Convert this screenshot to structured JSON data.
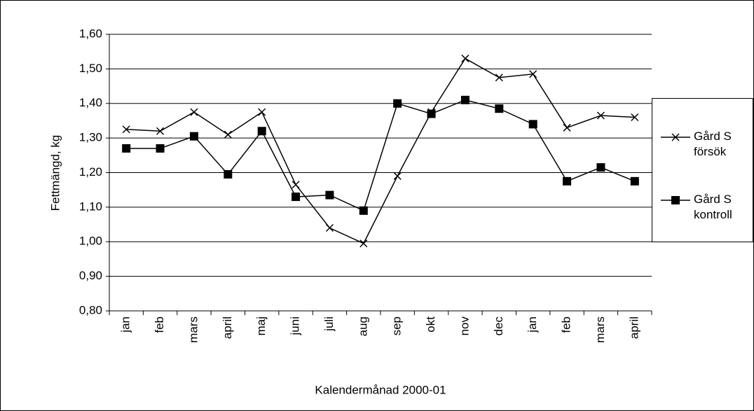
{
  "chart_data": {
    "type": "line",
    "x_label": "Kalendermånad 2000-01",
    "y_label": "Fettmängd, kg",
    "categories": [
      "jan",
      "feb",
      "mars",
      "april",
      "maj",
      "juni",
      "juli",
      "aug",
      "sep",
      "okt",
      "nov",
      "dec",
      "jan",
      "feb",
      "mars",
      "april"
    ],
    "series": [
      {
        "name": "Gård S försök",
        "color": "#000000",
        "marker": "x",
        "values": [
          1.325,
          1.32,
          1.375,
          1.31,
          1.375,
          1.165,
          1.04,
          0.995,
          1.19,
          1.375,
          1.53,
          1.475,
          1.485,
          1.33,
          1.365,
          1.36
        ]
      },
      {
        "name": "Gård S kontroll",
        "color": "#000000",
        "marker": "square",
        "values": [
          1.27,
          1.27,
          1.305,
          1.195,
          1.32,
          1.13,
          1.135,
          1.09,
          1.4,
          1.37,
          1.41,
          1.385,
          1.34,
          1.175,
          1.215,
          1.175
        ]
      }
    ],
    "ylim": [
      0.8,
      1.6
    ],
    "yticks": [
      {
        "value": 0.8,
        "label": "0,80"
      },
      {
        "value": 0.9,
        "label": "0,90"
      },
      {
        "value": 1.0,
        "label": "1,00"
      },
      {
        "value": 1.1,
        "label": "1,10"
      },
      {
        "value": 1.2,
        "label": "1,20"
      },
      {
        "value": 1.3,
        "label": "1,30"
      },
      {
        "value": 1.4,
        "label": "1,40"
      },
      {
        "value": 1.5,
        "label": "1,50"
      },
      {
        "value": 1.6,
        "label": "1,60"
      }
    ],
    "grid": true,
    "legend": "right"
  }
}
